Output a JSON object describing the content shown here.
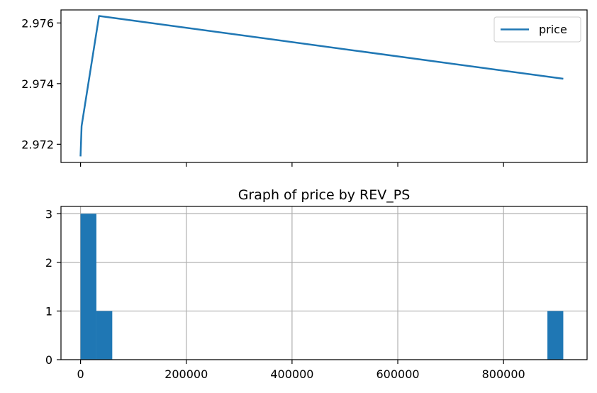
{
  "chart_data": [
    {
      "type": "line",
      "series": [
        {
          "name": "price",
          "color": "#1f77b4",
          "x": [
            0,
            2000,
            35000,
            913000
          ],
          "y": [
            2.9716,
            2.9726,
            2.97623,
            2.97416
          ]
        }
      ],
      "xlim": [
        -37000,
        958000
      ],
      "ylim": [
        2.9714,
        2.97643
      ],
      "yticks": [
        2.972,
        2.974,
        2.976
      ],
      "ytick_labels": [
        "2.972",
        "2.974",
        "2.976"
      ],
      "xticks": [
        0,
        200000,
        400000,
        600000,
        800000
      ],
      "xtick_labels_visible": false,
      "grid": false,
      "legend": {
        "entries": [
          "price"
        ],
        "placement": "upper right"
      }
    },
    {
      "type": "bar",
      "title": "Graph of price by REV_PS",
      "bins": [
        {
          "start": 0,
          "end": 30000,
          "count": 3
        },
        {
          "start": 30000,
          "end": 60000,
          "count": 1
        },
        {
          "start": 883000,
          "end": 913000,
          "count": 1
        }
      ],
      "color": "#1f77b4",
      "xlim": [
        -37000,
        958000
      ],
      "ylim": [
        0,
        3.15
      ],
      "xticks": [
        0,
        200000,
        400000,
        600000,
        800000
      ],
      "xtick_labels": [
        "0",
        "200000",
        "400000",
        "600000",
        "800000"
      ],
      "yticks": [
        0,
        1,
        2,
        3
      ],
      "ytick_labels": [
        "0",
        "1",
        "2",
        "3"
      ],
      "grid": true
    }
  ]
}
